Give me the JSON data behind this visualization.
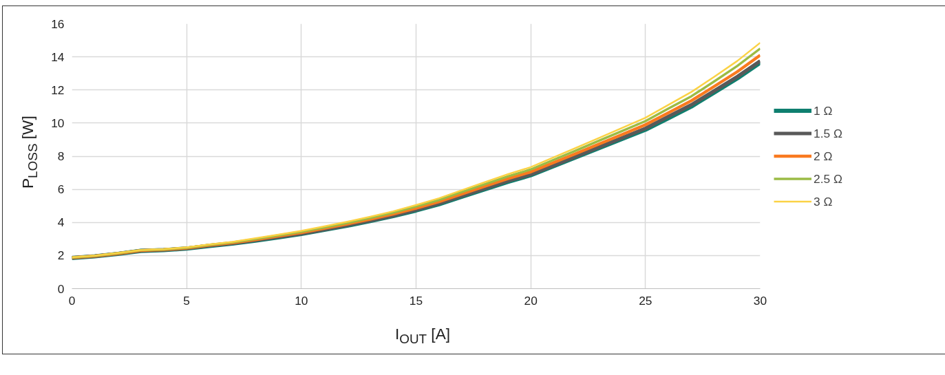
{
  "chart_data": {
    "type": "line",
    "xlabel": "I$_{OUT}$ [A]",
    "ylabel": "P$_{LOSS}$ [W]",
    "x": [
      0,
      1,
      2,
      3,
      4,
      5,
      6,
      7,
      8,
      9,
      10,
      11,
      12,
      13,
      14,
      15,
      16,
      17,
      18,
      19,
      20,
      21,
      22,
      23,
      24,
      25,
      26,
      27,
      28,
      29,
      30
    ],
    "xlim": [
      0,
      30
    ],
    "xticks": [
      0,
      5,
      10,
      15,
      20,
      25,
      30
    ],
    "ylim": [
      0,
      16
    ],
    "yticks": [
      0,
      2,
      4,
      6,
      8,
      10,
      12,
      14,
      16
    ],
    "grid": true,
    "legend": "right",
    "marker": "none",
    "line_style": "solid",
    "series": [
      {
        "name": "1 Ω",
        "color": "#0f7f6f",
        "values": [
          1.85,
          1.95,
          2.1,
          2.28,
          2.33,
          2.42,
          2.58,
          2.72,
          2.9,
          3.1,
          3.3,
          3.55,
          3.8,
          4.08,
          4.38,
          4.72,
          5.1,
          5.55,
          6.0,
          6.45,
          6.85,
          7.4,
          7.95,
          8.5,
          9.05,
          9.6,
          10.3,
          11.0,
          11.85,
          12.7,
          13.65
        ]
      },
      {
        "name": "1.5 Ω",
        "color": "#595959",
        "values": [
          1.86,
          1.96,
          2.11,
          2.29,
          2.34,
          2.43,
          2.6,
          2.74,
          2.92,
          3.12,
          3.32,
          3.57,
          3.83,
          4.11,
          4.41,
          4.76,
          5.14,
          5.6,
          6.05,
          6.5,
          6.9,
          7.45,
          8.0,
          8.56,
          9.12,
          9.68,
          10.4,
          11.1,
          11.95,
          12.8,
          13.75
        ]
      },
      {
        "name": "2 Ω",
        "color": "#f97a1f",
        "values": [
          1.87,
          1.97,
          2.12,
          2.3,
          2.35,
          2.45,
          2.62,
          2.77,
          2.96,
          3.17,
          3.38,
          3.64,
          3.9,
          4.19,
          4.5,
          4.86,
          5.25,
          5.72,
          6.18,
          6.64,
          7.05,
          7.62,
          8.18,
          8.75,
          9.32,
          9.9,
          10.62,
          11.35,
          12.22,
          13.1,
          14.1
        ]
      },
      {
        "name": "2.5 Ω",
        "color": "#9bbb45",
        "values": [
          1.88,
          1.98,
          2.14,
          2.32,
          2.37,
          2.47,
          2.65,
          2.8,
          3.0,
          3.22,
          3.44,
          3.7,
          3.97,
          4.27,
          4.59,
          4.96,
          5.36,
          5.84,
          6.31,
          6.78,
          7.2,
          7.78,
          8.36,
          8.95,
          9.53,
          10.12,
          10.88,
          11.62,
          12.52,
          13.45,
          14.5
        ]
      },
      {
        "name": "3 Ω",
        "color": "#fbd245",
        "values": [
          1.89,
          1.99,
          2.15,
          2.33,
          2.39,
          2.49,
          2.67,
          2.83,
          3.04,
          3.26,
          3.49,
          3.76,
          4.04,
          4.34,
          4.67,
          5.05,
          5.46,
          5.95,
          6.43,
          6.91,
          7.34,
          7.93,
          8.52,
          9.12,
          9.72,
          10.32,
          11.1,
          11.88,
          12.8,
          13.75,
          14.85
        ]
      }
    ]
  }
}
